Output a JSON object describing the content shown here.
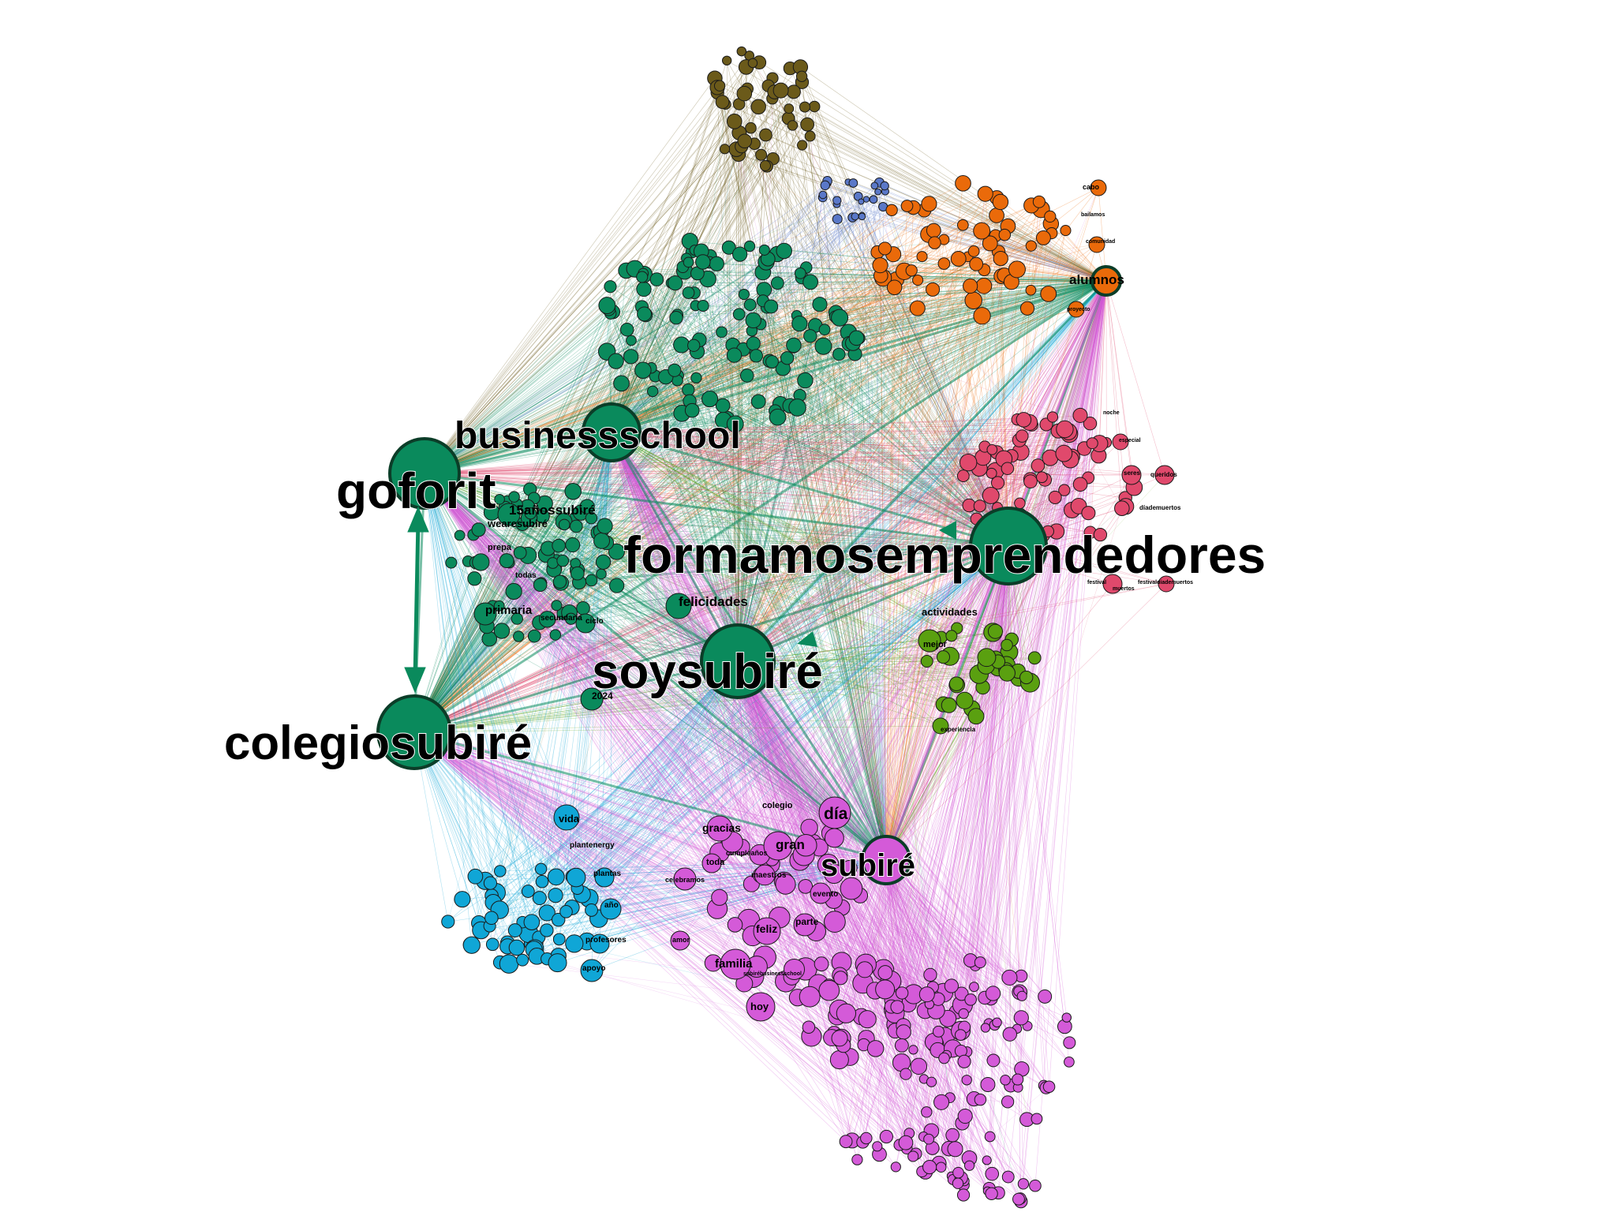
{
  "communities": {
    "teal": "#0a8a5c",
    "olive": "#6b5a1a",
    "blue": "#5a78c8",
    "orange": "#ea6a0a",
    "red": "#e0496c",
    "lime": "#5aa010",
    "cyan": "#10a6d6",
    "magenta": "#d45ad8"
  },
  "hub_labels": {
    "goforit": "goforit",
    "businessschool": "businessschool",
    "formamos": "formamosemprendedores",
    "soysubire": "soysubiré",
    "colegiosubire": "colegiosubiré",
    "subire": "subiré",
    "alumnos": "alumnos",
    "quinceanos": "15añossubiré",
    "wearesubire": "wearesubiré",
    "primaria": "primaria",
    "felicidades": "felicidades",
    "secundaria": "secundaria",
    "prepa": "prepa",
    "todas": "todas",
    "ciclo": "ciclo",
    "y2024": "2024",
    "actividades": "actividades",
    "mejor": "mejor",
    "experiencia": "experiencia",
    "vida": "vida",
    "plantenergy": "plantenergy",
    "plantas": "plantas",
    "ano": "año",
    "profesores": "profesores",
    "apoyo": "apoyo",
    "dia": "día",
    "colegio": "colegio",
    "gran": "gran",
    "gracias": "gracias",
    "toda": "toda",
    "cumpleanos": "cumpleaños",
    "maestros": "maestros",
    "celebramos": "celebramos",
    "evento": "evento",
    "feliz": "feliz",
    "parte": "parte",
    "amor": "amor",
    "familia": "familia",
    "hoy": "hoy",
    "cabo": "cabo",
    "bailamos": "bailamos",
    "comunidad": "comunidad",
    "proyecto": "proyecto",
    "seres": "seres",
    "queridos": "queridos",
    "diademuertos": "díademuertos",
    "especial": "especial",
    "festival": "festival",
    "festivaldiademuertos": "festivaldíademuertos",
    "muertos": "muertos",
    "noche": "noche",
    "subirebusinessschool": "subirébusinessschool"
  }
}
